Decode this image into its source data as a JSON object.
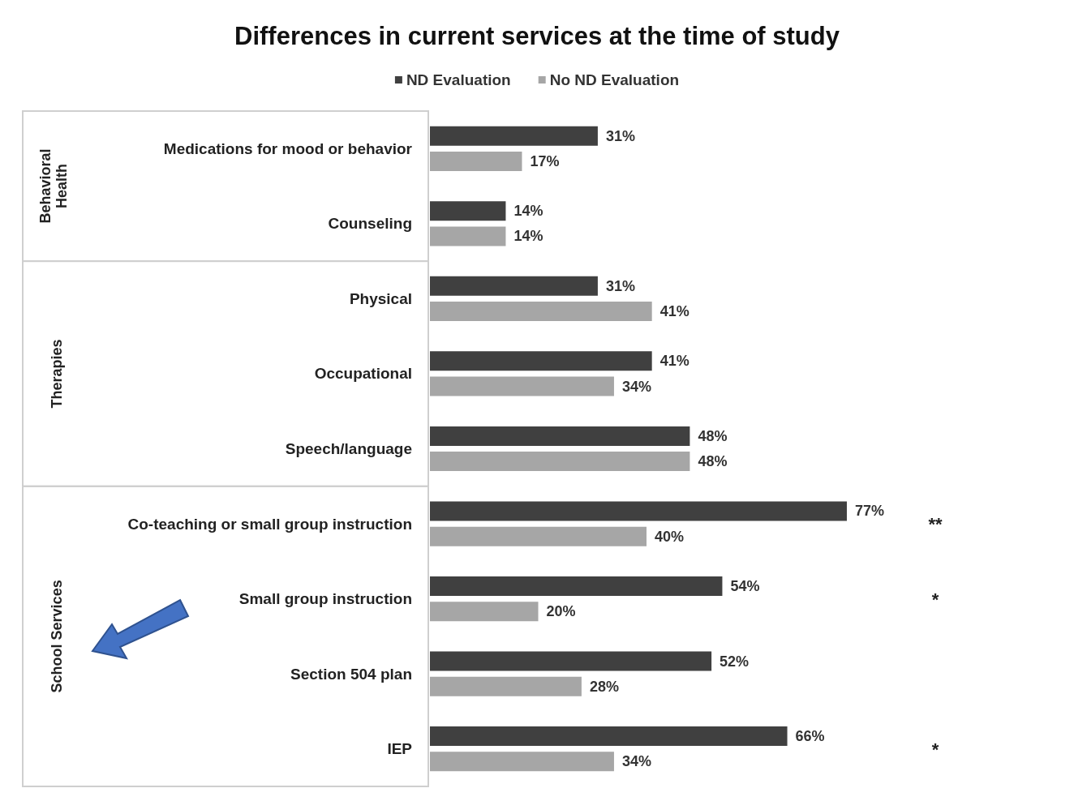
{
  "chart_data": {
    "type": "bar",
    "orientation": "horizontal",
    "title": "Differences in current services at the time of study",
    "categories": [
      "Medications for mood or behavior",
      "Counseling",
      "Physical",
      "Occupational",
      "Speech/language",
      "Co-teaching or small group instruction",
      "Small group instruction",
      "Section 504 plan",
      "IEP"
    ],
    "series": [
      {
        "name": "ND Evaluation",
        "color": "#404040",
        "values": [
          31,
          14,
          31,
          41,
          48,
          77,
          54,
          52,
          66
        ],
        "value_labels": [
          "31%",
          "14%",
          "31%",
          "41%",
          "48%",
          "77%",
          "54%",
          "52%",
          "66%"
        ]
      },
      {
        "name": "No ND Evaluation",
        "color": "#a6a6a6",
        "values": [
          17,
          14,
          41,
          34,
          48,
          40,
          20,
          28,
          34
        ],
        "value_labels": [
          "17%",
          "14%",
          "41%",
          "34%",
          "48%",
          "40%",
          "20%",
          "28%",
          "34%"
        ]
      }
    ],
    "grid": false,
    "legend": "top",
    "annotations": [
      "Behavioral Health",
      "Therapies",
      "School Services",
      "**",
      "*",
      "*"
    ]
  }
}
